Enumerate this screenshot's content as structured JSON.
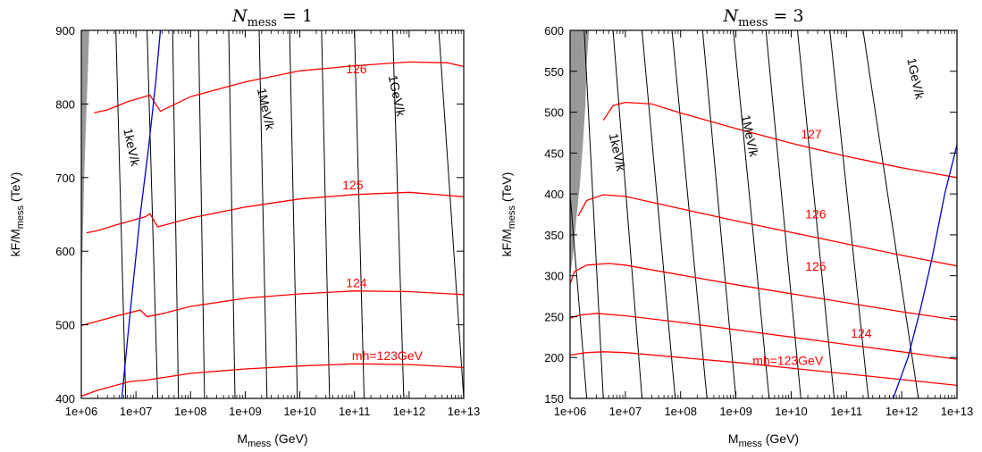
{
  "chart_data": [
    {
      "type": "line",
      "title": "N_mess = 1",
      "title_main": "N",
      "title_sub": "mess",
      "title_value": " = 1",
      "xlabel": "M",
      "xlabel_sub": "mess",
      "xlabel_unit": " (GeV)",
      "ylabel": "kF/M",
      "ylabel_sub": "mess",
      "ylabel_unit": " (TeV)",
      "xscale": "log",
      "xlim": [
        1000000,
        10000000000000
      ],
      "ylim": [
        400,
        900
      ],
      "xticks": [
        "1e+06",
        "1e+07",
        "1e+08",
        "1e+09",
        "1e+10",
        "1e+11",
        "1e+12",
        "1e+13"
      ],
      "yticks": [
        400,
        500,
        600,
        700,
        800,
        900
      ],
      "grid": false,
      "excluded_region_color": "#999999",
      "mh_color": "#ff0000",
      "gravitino_color": "#000000",
      "blue_color": "#0000cc",
      "excluded_region": [
        [
          1000000,
          540
        ],
        [
          1050000,
          600
        ],
        [
          1120000,
          690
        ],
        [
          1200000,
          760
        ],
        [
          1280000,
          820
        ],
        [
          1350000,
          870
        ],
        [
          1400000,
          900
        ]
      ],
      "mh_contours": [
        {
          "label": "mh=123GeV",
          "points": [
            [
              1000000,
              403
            ],
            [
              2000000,
              411
            ],
            [
              5000000,
              419
            ],
            [
              8000000,
              423
            ],
            [
              16000000,
              425
            ],
            [
              30000000,
              428
            ],
            [
              100000000,
              434
            ],
            [
              1000000000,
              440
            ],
            [
              10000000000,
              444
            ],
            [
              100000000000,
              447
            ],
            [
              1000000000000,
              446
            ],
            [
              10000000000000,
              442
            ]
          ]
        },
        {
          "label": "124",
          "points": [
            [
              1000000,
              499
            ],
            [
              2000000,
              505
            ],
            [
              5000000,
              513
            ],
            [
              12000000,
              520
            ],
            [
              16000000,
              511
            ],
            [
              30000000,
              515
            ],
            [
              100000000,
              525
            ],
            [
              1000000000,
              536
            ],
            [
              10000000000,
              542
            ],
            [
              100000000000,
              546
            ],
            [
              1000000000000,
              545
            ],
            [
              10000000000000,
              541
            ]
          ]
        },
        {
          "label": "125",
          "points": [
            [
              1250000,
              625
            ],
            [
              2000000,
              628
            ],
            [
              5000000,
              637
            ],
            [
              15000000,
              647
            ],
            [
              18000000,
              651
            ],
            [
              25000000,
              633
            ],
            [
              100000000,
              645
            ],
            [
              1000000000,
              660
            ],
            [
              10000000000,
              671
            ],
            [
              100000000000,
              677
            ],
            [
              1000000000000,
              680
            ],
            [
              10000000000000,
              674
            ]
          ]
        },
        {
          "label": "126",
          "points": [
            [
              1700000,
              788
            ],
            [
              3000000,
              792
            ],
            [
              7000000,
              803
            ],
            [
              18000000,
              812
            ],
            [
              28000000,
              790
            ],
            [
              100000000,
              810
            ],
            [
              1000000000,
              830
            ],
            [
              10000000000,
              845
            ],
            [
              100000000000,
              852
            ],
            [
              1000000000000,
              857
            ],
            [
              5000000000000,
              856
            ],
            [
              10000000000000,
              851
            ]
          ]
        }
      ],
      "gravitino_lines": [
        {
          "label": "1keV/k",
          "points": [
            [
              6500000,
              400
            ],
            [
              4300000,
              900
            ]
          ]
        },
        {
          "label": "",
          "points": [
            [
              25000000,
              400
            ],
            [
              16000000,
              900
            ]
          ]
        },
        {
          "label": "",
          "points": [
            [
              60000000,
              400
            ],
            [
              47000000,
              900
            ]
          ]
        },
        {
          "label": "",
          "points": [
            [
              180000000,
              400
            ],
            [
              140000000,
              900
            ]
          ]
        },
        {
          "label": "",
          "points": [
            [
              650000000,
              400
            ],
            [
              500000000,
              900
            ]
          ]
        },
        {
          "label": "1MeV/k",
          "points": [
            [
              2500000000,
              400
            ],
            [
              1800000000,
              900
            ]
          ]
        },
        {
          "label": "",
          "points": [
            [
              9000000000,
              400
            ],
            [
              6500000000,
              900
            ]
          ]
        },
        {
          "label": "",
          "points": [
            [
              35000000000,
              400
            ],
            [
              25000000000,
              900
            ]
          ]
        },
        {
          "label": "",
          "points": [
            [
              150000000000,
              400
            ],
            [
              100000000000,
              900
            ]
          ]
        },
        {
          "label": "1GeV/k",
          "points": [
            [
              800000000000,
              400
            ],
            [
              500000000000,
              900
            ]
          ]
        },
        {
          "label": "",
          "points": [
            [
              10000000000000,
              400
            ],
            [
              3500000000000,
              900
            ]
          ]
        }
      ],
      "blue_curve": [
        [
          5500000,
          400
        ],
        [
          7000000,
          480
        ],
        [
          9000000,
          560
        ],
        [
          12000000,
          650
        ],
        [
          17000000,
          740
        ],
        [
          23000000,
          830
        ],
        [
          28000000,
          900
        ]
      ],
      "labels": [
        {
          "text": "mh=123GeV",
          "x": 90000000000,
          "y": 452
        },
        {
          "text": "124",
          "x": 70000000000,
          "y": 551
        },
        {
          "text": "125",
          "x": 60000000000,
          "y": 684
        },
        {
          "text": "126",
          "x": 70000000000,
          "y": 842
        },
        {
          "text": "1keV/k",
          "x": 7000000,
          "y": 740
        },
        {
          "text": "1MeV/k",
          "x": 2000000000,
          "y": 792
        },
        {
          "text": "1GeV/k",
          "x": 500000000000,
          "y": 810
        }
      ]
    },
    {
      "type": "line",
      "title": "N_mess = 3",
      "title_main": "N",
      "title_sub": "mess",
      "title_value": " = 3",
      "xlabel": "M",
      "xlabel_sub": "mess",
      "xlabel_unit": " (GeV)",
      "ylabel": "kF/M",
      "ylabel_sub": "mess",
      "ylabel_unit": " (TeV)",
      "xscale": "log",
      "xlim": [
        1000000,
        10000000000000
      ],
      "ylim": [
        150,
        600
      ],
      "xticks": [
        "1e+06",
        "1e+07",
        "1e+08",
        "1e+09",
        "1e+10",
        "1e+11",
        "1e+12",
        "1e+13"
      ],
      "yticks": [
        150,
        200,
        250,
        300,
        350,
        400,
        450,
        500,
        550,
        600
      ],
      "grid": false,
      "excluded_region_color": "#999999",
      "mh_color": "#ff0000",
      "gravitino_color": "#000000",
      "blue_color": "#0000cc",
      "excluded_region": [
        [
          1000000,
          300
        ],
        [
          1150000,
          330
        ],
        [
          1300000,
          370
        ],
        [
          1500000,
          410
        ],
        [
          1700000,
          460
        ],
        [
          1900000,
          510
        ],
        [
          2000000,
          560
        ],
        [
          2200000,
          600
        ]
      ],
      "mh_contours": [
        {
          "label": "mh=123GeV",
          "points": [
            [
              1000000,
              203
            ],
            [
              2000000,
              206
            ],
            [
              4000000,
              207
            ],
            [
              10000000,
              206
            ],
            [
              100000000,
              200
            ],
            [
              1000000000,
              194
            ],
            [
              10000000000,
              187
            ],
            [
              100000000000,
              180
            ],
            [
              1000000000000,
              173
            ],
            [
              10000000000000,
              166
            ]
          ]
        },
        {
          "label": "124",
          "points": [
            [
              1000000,
              248
            ],
            [
              1500000,
              252
            ],
            [
              3000000,
              254
            ],
            [
              10000000,
              251
            ],
            [
              100000000,
              243
            ],
            [
              1000000000,
              234
            ],
            [
              10000000000,
              225
            ],
            [
              100000000000,
              216
            ],
            [
              1000000000000,
              207
            ],
            [
              10000000000000,
              198
            ]
          ]
        },
        {
          "label": "125",
          "points": [
            [
              1000000,
              290
            ],
            [
              1200000,
              305
            ],
            [
              2000000,
              313
            ],
            [
              5000000,
              315
            ],
            [
              10000000,
              313
            ],
            [
              100000000,
              301
            ],
            [
              1000000000,
              289
            ],
            [
              10000000000,
              278
            ],
            [
              100000000000,
              267
            ],
            [
              1000000000000,
              256
            ],
            [
              10000000000000,
              246
            ]
          ]
        },
        {
          "label": "126",
          "points": [
            [
              1400000,
              373
            ],
            [
              2000000,
              392
            ],
            [
              4000000,
              399
            ],
            [
              10000000,
              397
            ],
            [
              100000000,
              382
            ],
            [
              1000000000,
              367
            ],
            [
              10000000000,
              353
            ],
            [
              100000000000,
              339
            ],
            [
              1000000000000,
              325
            ],
            [
              10000000000000,
              312
            ]
          ]
        },
        {
          "label": "127",
          "points": [
            [
              4000000,
              490
            ],
            [
              6000000,
              508
            ],
            [
              10000000,
              512
            ],
            [
              30000000,
              510
            ],
            [
              100000000,
              499
            ],
            [
              1000000000,
              480
            ],
            [
              10000000000,
              462
            ],
            [
              100000000000,
              446
            ],
            [
              1000000000000,
              432
            ],
            [
              10000000000000,
              420
            ]
          ]
        }
      ],
      "gravitino_lines": [
        {
          "label": "",
          "points": [
            [
              2000000,
              150
            ],
            [
              1000000,
              400
            ]
          ]
        },
        {
          "label": "",
          "points": [
            [
              4000000,
              150
            ],
            [
              1800000,
              600
            ]
          ]
        },
        {
          "label": "1keV/k",
          "points": [
            [
              20000000,
              150
            ],
            [
              6000000,
              600
            ]
          ]
        },
        {
          "label": "",
          "points": [
            [
              80000000,
              150
            ],
            [
              20000000,
              600
            ]
          ]
        },
        {
          "label": "",
          "points": [
            [
              300000000,
              150
            ],
            [
              70000000,
              600
            ]
          ]
        },
        {
          "label": "",
          "points": [
            [
              1000000000,
              150
            ],
            [
              250000000,
              600
            ]
          ]
        },
        {
          "label": "1MeV/k",
          "points": [
            [
              4000000000,
              150
            ],
            [
              900000000,
              600
            ]
          ]
        },
        {
          "label": "",
          "points": [
            [
              15000000000,
              150
            ],
            [
              3500000000,
              600
            ]
          ]
        },
        {
          "label": "",
          "points": [
            [
              60000000000,
              150
            ],
            [
              13000000000,
              600
            ]
          ]
        },
        {
          "label": "",
          "points": [
            [
              250000000000,
              150
            ],
            [
              50000000000,
              600
            ]
          ]
        },
        {
          "label": "1GeV/k",
          "points": [
            [
              2000000000000,
              150
            ],
            [
              200000000000,
              600
            ]
          ]
        }
      ],
      "blue_curve": [
        [
          700000000000,
          150
        ],
        [
          1300000000000,
          200
        ],
        [
          2200000000000,
          260
        ],
        [
          3500000000000,
          320
        ],
        [
          6000000000000,
          400
        ],
        [
          10000000000000,
          460
        ]
      ],
      "labels": [
        {
          "text": "mh=123GeV",
          "x": 2000000000,
          "y": 191
        },
        {
          "text": "124",
          "x": 120000000000,
          "y": 224
        },
        {
          "text": "125",
          "x": 18000000000,
          "y": 306
        },
        {
          "text": "126",
          "x": 18000000000,
          "y": 370
        },
        {
          "text": "127",
          "x": 15000000000,
          "y": 468
        },
        {
          "text": "1keV/k",
          "x": 6000000,
          "y": 450
        },
        {
          "text": "1MeV/k",
          "x": 1500000000,
          "y": 470
        },
        {
          "text": "1GeV/k",
          "x": 1500000000000,
          "y": 540
        }
      ]
    }
  ]
}
